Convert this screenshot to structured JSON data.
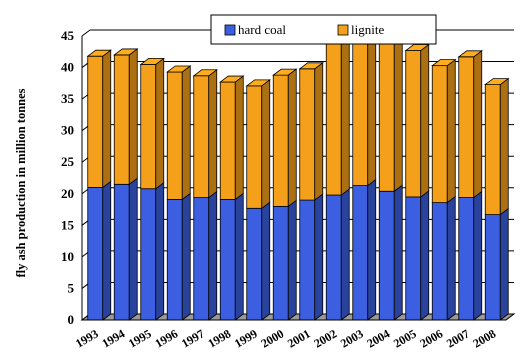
{
  "chart_data": {
    "type": "bar",
    "stacked": true,
    "style": "3d",
    "ylabel": "fly ash production in million tonnes",
    "xlabel": "",
    "ylim": [
      0,
      45
    ],
    "yticks": [
      0,
      5,
      10,
      15,
      20,
      25,
      30,
      35,
      40,
      45
    ],
    "grid": true,
    "legend_position": "top-center",
    "categories": [
      "1993",
      "1994",
      "1995",
      "1996",
      "1997",
      "1998",
      "1999",
      "2000",
      "2001",
      "2002",
      "2003",
      "2004",
      "2005",
      "2006",
      "2007",
      "2008"
    ],
    "series": [
      {
        "name": "hard coal",
        "color": "#3b5fe0",
        "values": [
          21.0,
          21.5,
          20.8,
          19.1,
          19.4,
          19.1,
          17.7,
          18.0,
          19.0,
          19.8,
          21.3,
          20.4,
          19.5,
          18.6,
          19.4,
          16.7
        ]
      },
      {
        "name": "lignite",
        "color": "#f5a01a",
        "values": [
          20.8,
          20.5,
          19.7,
          20.2,
          19.3,
          18.6,
          19.4,
          20.8,
          20.8,
          27.0,
          26.0,
          26.3,
          23.2,
          21.7,
          22.3,
          20.6
        ]
      }
    ]
  }
}
